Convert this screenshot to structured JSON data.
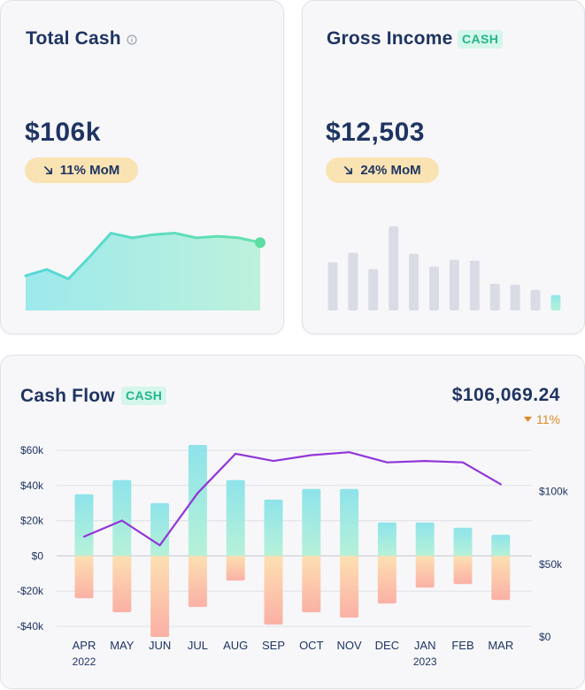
{
  "total_cash": {
    "title": "Total Cash",
    "value": "$106k",
    "change": "11% MoM",
    "change_direction": "down",
    "chart_data": {
      "type": "area",
      "values": [
        22,
        26,
        20,
        34,
        49,
        46,
        48,
        49,
        46,
        47,
        46,
        43
      ],
      "ylim": [
        0,
        70
      ],
      "colors": {
        "fill_start": "#8de6ea",
        "fill_end": "#b2f0d6",
        "line_start": "#57d7d8",
        "line_end": "#64e1ab",
        "marker": "#5ddda3"
      }
    }
  },
  "gross_income": {
    "title": "Gross Income",
    "tag": "CASH",
    "value": "$12,503",
    "change": "24% MoM",
    "change_direction": "down",
    "chart_data": {
      "type": "bar",
      "values": [
        56,
        67,
        48,
        98,
        66,
        51,
        59,
        58,
        31,
        30,
        24,
        18
      ],
      "ylim": [
        0,
        110
      ],
      "highlight_last": true,
      "colors": {
        "bar": "#d9dce5",
        "highlight_start": "#92e7ea",
        "highlight_end": "#b4f1d6"
      }
    }
  },
  "cash_flow": {
    "title": "Cash Flow",
    "tag": "CASH",
    "value": "$106,069.24",
    "change": "11%",
    "change_direction": "down",
    "chart_data": {
      "type": "bar",
      "categories": [
        "APR",
        "MAY",
        "JUN",
        "JUL",
        "AUG",
        "SEP",
        "OCT",
        "NOV",
        "DEC",
        "JAN",
        "FEB",
        "MAR"
      ],
      "year_labels": [
        {
          "label": "2022",
          "category": "APR"
        },
        {
          "label": "2023",
          "category": "JAN"
        }
      ],
      "series": [
        {
          "values": [
            35,
            43,
            30,
            63,
            43,
            32,
            38,
            38,
            19,
            19,
            16,
            12
          ],
          "axis": "left"
        },
        {
          "values": [
            -24,
            -32,
            -46,
            -29,
            -14,
            -39,
            -32,
            -35,
            -27,
            -18,
            -16,
            -25
          ],
          "axis": "left"
        },
        {
          "type": "line",
          "values": [
            69,
            80,
            63,
            99,
            126,
            121,
            125,
            127,
            120,
            121,
            120,
            105
          ],
          "axis": "right"
        }
      ],
      "y_left": {
        "ticks": [
          60,
          40,
          20,
          0,
          -20,
          -40
        ],
        "tick_labels": [
          "$60k",
          "$40k",
          "$20k",
          "$0",
          "-$20k",
          "-$40k"
        ],
        "ylim": [
          -46,
          63
        ]
      },
      "y_right": {
        "ticks": [
          100,
          50,
          0
        ],
        "tick_labels": [
          "$100k",
          "$50k",
          "$0"
        ],
        "ylim": [
          0,
          132
        ]
      },
      "grid": true,
      "colors": {
        "positive_start": "#8ee3ea",
        "positive_end": "#b6f1d8",
        "negative_start": "#fce0b2",
        "negative_end": "#fbb0a5",
        "line": "#9135d8",
        "grid": "#dfe1e6",
        "zero_line": "#c4c7cf",
        "axis_text": "#1f3462",
        "change": "#df8a2a"
      }
    }
  }
}
